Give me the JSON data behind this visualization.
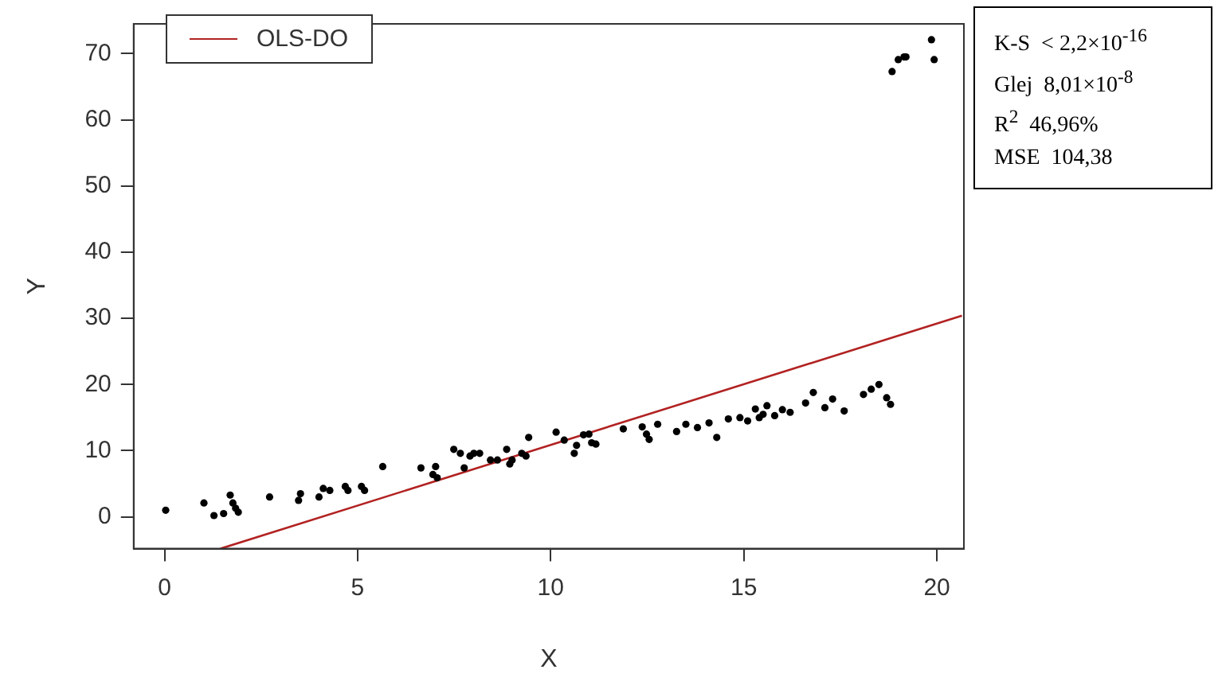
{
  "chart_data": {
    "type": "scatter",
    "xlabel": "X",
    "ylabel": "Y",
    "xlim": [
      -0.8,
      20.7
    ],
    "ylim": [
      -4.8,
      74.5
    ],
    "xticks": [
      0,
      5,
      10,
      15,
      20
    ],
    "yticks": [
      0,
      10,
      20,
      30,
      40,
      50,
      60,
      70
    ],
    "grid": false,
    "legend": "top left",
    "marker": "circle",
    "annotations": [
      "K-S  < 2,2×10$^{-16}$",
      "Glej  8,01×10$^{-8}$",
      "R$^{2}$  46,96%",
      "MSE  104,38"
    ],
    "series": [
      {
        "type": "scatter",
        "color": "#000000",
        "x": [
          0.03,
          1.02,
          1.28,
          1.53,
          1.7,
          1.77,
          1.84,
          1.91,
          2.72,
          3.47,
          3.52,
          4.0,
          4.11,
          4.28,
          4.68,
          4.75,
          5.1,
          5.18,
          5.65,
          6.64,
          6.95,
          7.02,
          7.06,
          7.49,
          7.66,
          7.76,
          7.91,
          8.01,
          8.16,
          8.44,
          8.62,
          8.86,
          8.94,
          9.0,
          9.25,
          9.36,
          9.43,
          10.14,
          10.35,
          10.61,
          10.67,
          10.85,
          10.99,
          11.06,
          11.17,
          11.88,
          12.37,
          12.48,
          12.55,
          12.77,
          13.26,
          13.5,
          13.8,
          14.1,
          14.3,
          14.6,
          14.9,
          15.1,
          15.3,
          15.4,
          15.5,
          15.6,
          15.8,
          16.0,
          16.2,
          16.6,
          16.8,
          17.1,
          17.3,
          17.6,
          18.1,
          18.3,
          18.5,
          18.7,
          18.8,
          18.84,
          19.0,
          19.15,
          19.2,
          19.86,
          19.93
        ],
        "values": [
          1.0,
          2.1,
          0.2,
          0.5,
          3.3,
          2.1,
          1.3,
          0.7,
          3.0,
          2.5,
          3.5,
          3.0,
          4.3,
          4.0,
          4.6,
          4.0,
          4.6,
          4.0,
          7.6,
          7.4,
          6.4,
          7.6,
          5.9,
          10.2,
          9.6,
          7.4,
          9.2,
          9.6,
          9.6,
          8.6,
          8.6,
          10.2,
          8.0,
          8.6,
          9.6,
          9.2,
          12.0,
          12.8,
          11.6,
          9.6,
          10.8,
          12.4,
          12.5,
          11.2,
          11.0,
          13.3,
          13.6,
          12.5,
          11.7,
          14.0,
          12.9,
          14.0,
          13.5,
          14.2,
          12.0,
          14.8,
          15.0,
          14.5,
          16.3,
          15.0,
          15.5,
          16.8,
          15.3,
          16.2,
          15.8,
          17.2,
          18.8,
          16.5,
          17.8,
          16.0,
          18.5,
          19.3,
          20.0,
          18.0,
          17.0,
          67.3,
          69.1,
          69.5,
          69.5,
          72.1,
          69.1
        ]
      },
      {
        "type": "line",
        "name": "OLS-DO",
        "color": "#b22222",
        "x": [
          1.45,
          20.65
        ],
        "values": [
          -4.8,
          30.4
        ],
        "marker": "none"
      }
    ]
  }
}
